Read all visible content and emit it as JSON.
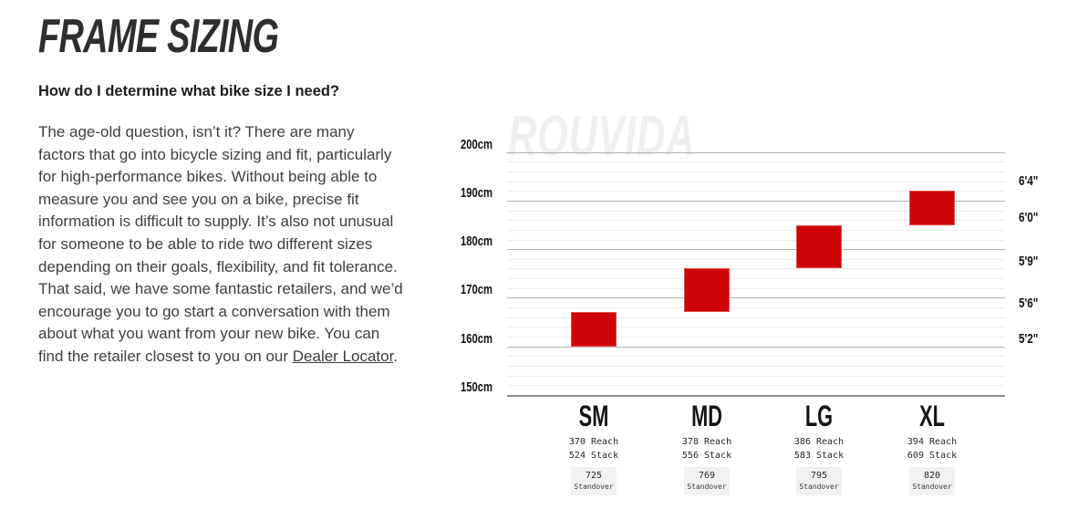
{
  "page": {
    "title": "FRAME SIZING",
    "subtitle": "How do I determine what bike size I need?",
    "paragraph": "The age-old question, isn’t it? There are many factors that go into bicycle sizing and fit, particularly for high-performance bikes. Without being able to measure you and see you on a bike, precise fit information is difficult to supply. It’s also not unusual for someone to be able to ride two different sizes depending on their goals, flexibility, and fit tolerance. That said, we have some fantastic retailers, and we’d encourage you to go start a conversation with them about what you want from your new bike. You can find the retailer closest to you on our ",
    "link_text": "Dealer Locator",
    "paragraph_end": "."
  },
  "chart_data": {
    "type": "bar",
    "subtype": "vertical-range-bars",
    "watermark": "ROUVIDA",
    "bar_color": "#ce0409",
    "grid": true,
    "legend": false,
    "y_axis": {
      "unit": "cm",
      "min": 150,
      "max": 200,
      "major_ticks": [
        200,
        190,
        180,
        170,
        160,
        150
      ],
      "tick_labels": [
        "200cm",
        "190cm",
        "180cm",
        "170cm",
        "160cm",
        "150cm"
      ],
      "minor_step_cm": 2
    },
    "right_axis_labels": [
      {
        "text": "6'4\"",
        "cm": 193.9
      },
      {
        "text": "6'0\"",
        "cm": 186.4
      },
      {
        "text": "5'9\"",
        "cm": 177.4
      },
      {
        "text": "5'6\"",
        "cm": 168.8
      },
      {
        "text": "5'2\"",
        "cm": 161.5
      }
    ],
    "sizes": [
      {
        "label": "SM",
        "rider_height_min_cm": 160,
        "rider_height_max_cm": 167,
        "reach_mm": 370,
        "stack_mm": 524,
        "standover_mm": 725,
        "reach_text": "370 Reach",
        "stack_text": "524 Stack",
        "standover_value": "725",
        "standover_word": "Standover"
      },
      {
        "label": "MD",
        "rider_height_min_cm": 167,
        "rider_height_max_cm": 176,
        "reach_mm": 378,
        "stack_mm": 556,
        "standover_mm": 769,
        "reach_text": "378 Reach",
        "stack_text": "556 Stack",
        "standover_value": "769",
        "standover_word": "Standover"
      },
      {
        "label": "LG",
        "rider_height_min_cm": 176,
        "rider_height_max_cm": 185,
        "reach_mm": 386,
        "stack_mm": 583,
        "standover_mm": 795,
        "reach_text": "386 Reach",
        "stack_text": "583 Stack",
        "standover_value": "795",
        "standover_word": "Standover"
      },
      {
        "label": "XL",
        "rider_height_min_cm": 185,
        "rider_height_max_cm": 192,
        "reach_mm": 394,
        "stack_mm": 609,
        "standover_mm": 820,
        "reach_text": "394 Reach",
        "stack_text": "609 Stack",
        "standover_value": "820",
        "standover_word": "Standover"
      }
    ]
  }
}
